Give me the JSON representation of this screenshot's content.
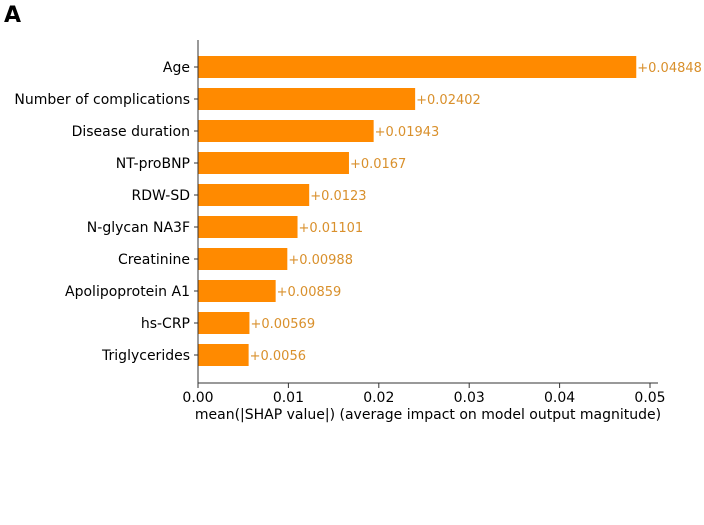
{
  "panel_label": "A",
  "chart_data": {
    "type": "bar",
    "orientation": "horizontal",
    "categories": [
      "Age",
      "Number of complications",
      "Disease duration",
      "NT-proBNP",
      "RDW-SD",
      "N-glycan NA3F",
      "Creatinine",
      "Apolipoprotein A1",
      "hs-CRP",
      "Triglycerides"
    ],
    "values": [
      0.04848,
      0.02402,
      0.01943,
      0.0167,
      0.0123,
      0.01101,
      0.00988,
      0.00859,
      0.00569,
      0.0056
    ],
    "data_labels": [
      "+0.04848",
      "+0.02402",
      "+0.01943",
      "+0.0167",
      "+0.0123",
      "+0.01101",
      "+0.00988",
      "+0.00859",
      "+0.00569",
      "+0.0056"
    ],
    "xlabel": "mean(|SHAP value|) (average impact on model output magnitude)",
    "ylabel": "",
    "xlim": [
      0,
      0.0509
    ],
    "xticks": [
      0,
      0.01,
      0.02,
      0.03,
      0.04,
      0.05
    ],
    "xtick_labels": [
      "0.00",
      "0.01",
      "0.02",
      "0.03",
      "0.04",
      "0.05"
    ],
    "grid": false,
    "colors": {
      "bar": "#ff8a00",
      "data_label": "#d9902c",
      "axis": "#333333"
    }
  }
}
